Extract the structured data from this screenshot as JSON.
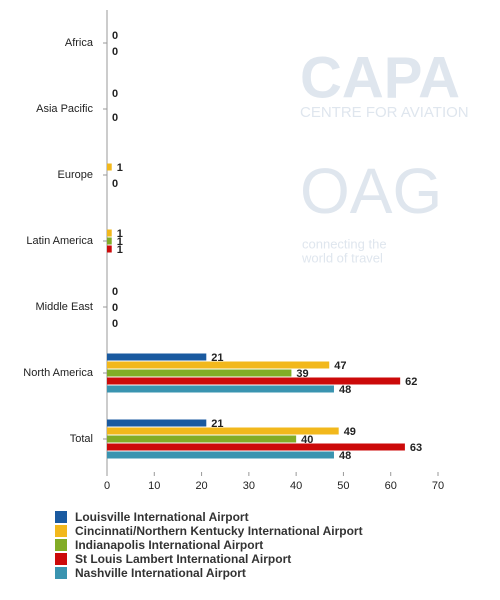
{
  "chart_data": {
    "type": "hbar",
    "watermarks": [
      "CAPA",
      "CENTRE FOR AVIATION",
      "OAG",
      "connecting the",
      "world of travel"
    ],
    "categories": [
      "Africa",
      "Asia Pacific",
      "Europe",
      "Latin America",
      "Middle East",
      "North America",
      "Total"
    ],
    "series": [
      {
        "name": "Louisville International Airport",
        "color": "#1a5aa0",
        "values": [
          null,
          0,
          null,
          null,
          0,
          21,
          21
        ]
      },
      {
        "name": "Cincinnati/Northern Kentucky International Airport",
        "color": "#f2b81c",
        "values": [
          0,
          null,
          1,
          1,
          null,
          47,
          49
        ]
      },
      {
        "name": "Indianapolis International Airport",
        "color": "#82ac26",
        "values": [
          null,
          null,
          null,
          1,
          0,
          39,
          40
        ]
      },
      {
        "name": "St Louis Lambert International Airport",
        "color": "#cc0a0a",
        "values": [
          0,
          0,
          0,
          1,
          null,
          62,
          63
        ]
      },
      {
        "name": "Nashville International Airport",
        "color": "#3a94b0",
        "values": [
          null,
          null,
          null,
          null,
          0,
          48,
          48
        ]
      }
    ],
    "xlim": [
      0,
      70
    ],
    "xticks": [
      0,
      10,
      20,
      30,
      40,
      50,
      60,
      70
    ]
  }
}
